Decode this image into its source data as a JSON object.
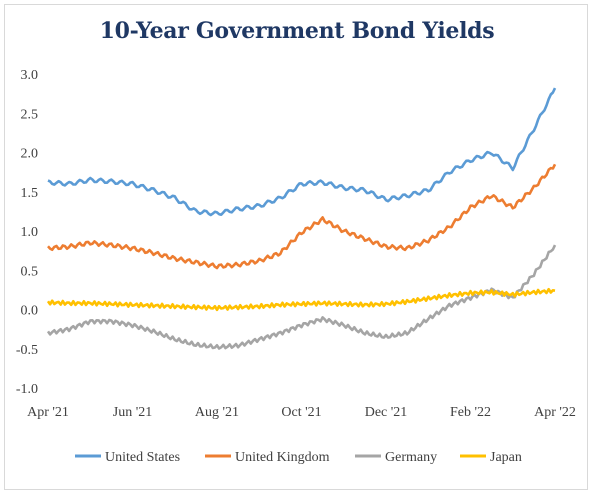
{
  "chart_data": {
    "type": "line",
    "title": "10-Year Government Bond Yields",
    "xlabel": "",
    "ylabel": "",
    "ylim": [
      -1.0,
      3.0
    ],
    "y_ticks": [
      "3.0",
      "2.5",
      "2.0",
      "1.5",
      "1.0",
      "0.5",
      "0.0",
      "-0.5",
      "-1.0"
    ],
    "x_ticks": [
      "Apr '21",
      "Jun '21",
      "Aug '21",
      "Oct '21",
      "Dec '21",
      "Feb '22",
      "Apr '22"
    ],
    "x_months": [
      0,
      2,
      4,
      6,
      8,
      10,
      12
    ],
    "grid": false,
    "legend_position": "bottom",
    "series": [
      {
        "name": "United States",
        "color": "#5b9bd5",
        "x": [
          0,
          0.5,
          1,
          1.5,
          2,
          2.5,
          3,
          3.5,
          4,
          4.5,
          5,
          5.5,
          6,
          6.5,
          7,
          7.5,
          8,
          8.5,
          9,
          9.5,
          10,
          10.5,
          11,
          11.5,
          12
        ],
        "y": [
          1.62,
          1.6,
          1.65,
          1.63,
          1.6,
          1.52,
          1.42,
          1.25,
          1.22,
          1.28,
          1.32,
          1.42,
          1.6,
          1.62,
          1.55,
          1.52,
          1.4,
          1.45,
          1.52,
          1.75,
          1.9,
          2.0,
          1.8,
          2.3,
          2.82
        ]
      },
      {
        "name": "United Kingdom",
        "color": "#ed7d31",
        "x": [
          0,
          0.5,
          1,
          1.5,
          2,
          2.5,
          3,
          3.5,
          4,
          4.5,
          5,
          5.5,
          6,
          6.5,
          7,
          7.5,
          8,
          8.5,
          9,
          9.5,
          10,
          10.5,
          11,
          11.5,
          12
        ],
        "y": [
          0.78,
          0.8,
          0.85,
          0.82,
          0.78,
          0.72,
          0.65,
          0.6,
          0.55,
          0.57,
          0.62,
          0.72,
          0.98,
          1.15,
          1.0,
          0.9,
          0.8,
          0.78,
          0.88,
          1.05,
          1.3,
          1.45,
          1.3,
          1.55,
          1.85
        ]
      },
      {
        "name": "Germany",
        "color": "#a5a5a5",
        "x": [
          0,
          0.5,
          1,
          1.5,
          2,
          2.5,
          3,
          3.5,
          4,
          4.5,
          5,
          5.5,
          6,
          6.5,
          7,
          7.5,
          8,
          8.5,
          9,
          9.5,
          10,
          10.5,
          11,
          11.5,
          12
        ],
        "y": [
          -0.3,
          -0.25,
          -0.15,
          -0.15,
          -0.2,
          -0.28,
          -0.38,
          -0.45,
          -0.48,
          -0.46,
          -0.38,
          -0.3,
          -0.2,
          -0.12,
          -0.2,
          -0.3,
          -0.35,
          -0.3,
          -0.12,
          0.05,
          0.15,
          0.25,
          0.15,
          0.45,
          0.82
        ]
      },
      {
        "name": "Japan",
        "color": "#ffc000",
        "x": [
          0,
          0.5,
          1,
          1.5,
          2,
          2.5,
          3,
          3.5,
          4,
          4.5,
          5,
          5.5,
          6,
          6.5,
          7,
          7.5,
          8,
          8.5,
          9,
          9.5,
          10,
          10.5,
          11,
          11.5,
          12
        ],
        "y": [
          0.09,
          0.08,
          0.08,
          0.07,
          0.06,
          0.05,
          0.04,
          0.03,
          0.02,
          0.03,
          0.04,
          0.06,
          0.07,
          0.08,
          0.07,
          0.06,
          0.07,
          0.1,
          0.14,
          0.18,
          0.21,
          0.22,
          0.19,
          0.22,
          0.24
        ]
      }
    ]
  }
}
